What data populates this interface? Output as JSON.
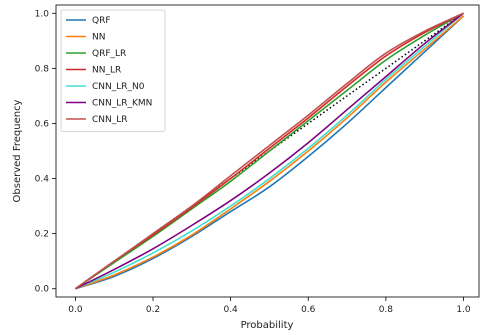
{
  "chart_data": {
    "type": "line",
    "xlabel": "Probability",
    "ylabel": "Observed Frequency",
    "xlim": [
      -0.05,
      1.04
    ],
    "ylim": [
      -0.03,
      1.03
    ],
    "xticks": [
      0.0,
      0.2,
      0.4,
      0.6,
      0.8,
      1.0
    ],
    "yticks": [
      0.0,
      0.2,
      0.4,
      0.6,
      0.8,
      1.0
    ],
    "xtick_labels": [
      "0.0",
      "0.2",
      "0.4",
      "0.6",
      "0.8",
      "1.0"
    ],
    "ytick_labels": [
      "0.0",
      "0.2",
      "0.4",
      "0.6",
      "0.8",
      "1.0"
    ],
    "legend_position": "top-left",
    "grid": false,
    "reference_line": {
      "style": "dotted",
      "color": "#000000",
      "x": [
        0,
        1
      ],
      "y": [
        0,
        1
      ]
    },
    "series": [
      {
        "name": "QRF",
        "color": "#1f77b4",
        "x": [
          0,
          0.1,
          0.2,
          0.3,
          0.4,
          0.5,
          0.6,
          0.7,
          0.8,
          0.9,
          1.0
        ],
        "y": [
          0,
          0.045,
          0.11,
          0.19,
          0.28,
          0.37,
          0.48,
          0.6,
          0.73,
          0.86,
          0.99
        ]
      },
      {
        "name": "NN",
        "color": "#ff7f0e",
        "x": [
          0,
          0.1,
          0.2,
          0.3,
          0.4,
          0.5,
          0.6,
          0.7,
          0.8,
          0.9,
          1.0
        ],
        "y": [
          0,
          0.05,
          0.115,
          0.195,
          0.29,
          0.39,
          0.5,
          0.62,
          0.75,
          0.87,
          0.99
        ]
      },
      {
        "name": "QRF_LR",
        "color": "#2ca02c",
        "x": [
          0,
          0.1,
          0.2,
          0.3,
          0.4,
          0.5,
          0.6,
          0.7,
          0.8,
          0.9,
          1.0
        ],
        "y": [
          0,
          0.095,
          0.19,
          0.29,
          0.39,
          0.5,
          0.61,
          0.72,
          0.83,
          0.92,
          1.0
        ]
      },
      {
        "name": "NN_LR",
        "color": "#d62728",
        "x": [
          0,
          0.1,
          0.2,
          0.3,
          0.4,
          0.5,
          0.6,
          0.7,
          0.8,
          0.9,
          1.0
        ],
        "y": [
          0,
          0.1,
          0.195,
          0.295,
          0.4,
          0.51,
          0.62,
          0.735,
          0.845,
          0.93,
          1.0
        ]
      },
      {
        "name": "CNN_LR_N0",
        "color": "#40e0d0",
        "x": [
          0,
          0.1,
          0.2,
          0.3,
          0.4,
          0.5,
          0.6,
          0.7,
          0.8,
          0.9,
          1.0
        ],
        "y": [
          0,
          0.06,
          0.13,
          0.21,
          0.3,
          0.4,
          0.51,
          0.63,
          0.76,
          0.88,
          1.0
        ]
      },
      {
        "name": "CNN_LR_KMN",
        "color": "#800080",
        "x": [
          0,
          0.1,
          0.2,
          0.3,
          0.4,
          0.5,
          0.6,
          0.7,
          0.8,
          0.9,
          1.0
        ],
        "y": [
          0,
          0.07,
          0.145,
          0.23,
          0.32,
          0.42,
          0.53,
          0.65,
          0.77,
          0.89,
          1.0
        ]
      },
      {
        "name": "CNN_LR",
        "color": "#c0504d",
        "x": [
          0,
          0.1,
          0.2,
          0.3,
          0.4,
          0.5,
          0.6,
          0.7,
          0.8,
          0.9,
          1.0
        ],
        "y": [
          0,
          0.1,
          0.2,
          0.3,
          0.41,
          0.52,
          0.63,
          0.745,
          0.855,
          0.935,
          1.0
        ]
      }
    ]
  }
}
